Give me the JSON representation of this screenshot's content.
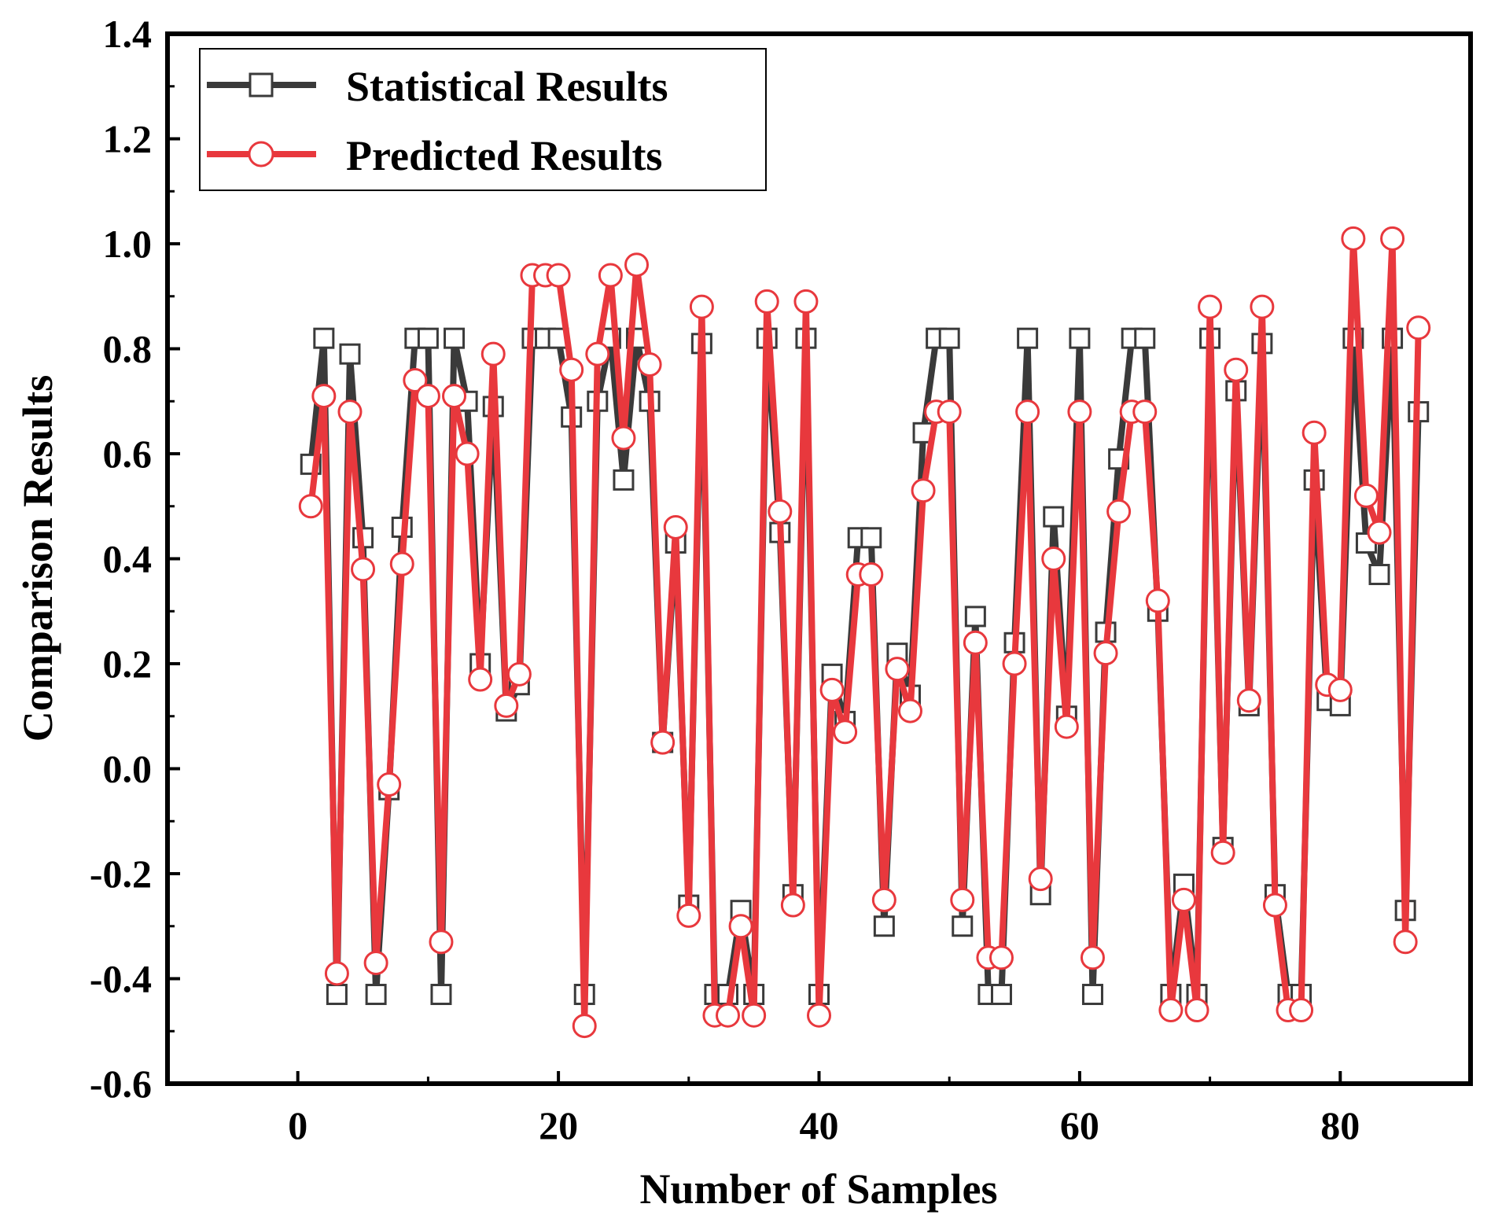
{
  "chart_data": {
    "type": "line",
    "title": "",
    "xlabel": "Number of Samples",
    "ylabel": "Comparison Results",
    "xlim": [
      -10,
      90
    ],
    "ylim": [
      -0.6,
      1.4
    ],
    "xticks": [
      0,
      20,
      40,
      60,
      80
    ],
    "yticks": [
      -0.6,
      -0.4,
      -0.2,
      0.0,
      0.2,
      0.4,
      0.6,
      0.8,
      1.0,
      1.2,
      1.4
    ],
    "ytick_labels": [
      "-0.6",
      "-0.4",
      "-0.2",
      "0.0",
      "0.2",
      "0.4",
      "0.6",
      "0.8",
      "1.0",
      "1.2",
      "1.4"
    ],
    "xtick_labels": [
      "0",
      "20",
      "40",
      "60",
      "80"
    ],
    "grid": false,
    "legend_position": "top-left",
    "x": [
      1,
      2,
      3,
      4,
      5,
      6,
      7,
      8,
      9,
      10,
      11,
      12,
      13,
      14,
      15,
      16,
      17,
      18,
      19,
      20,
      21,
      22,
      23,
      24,
      25,
      26,
      27,
      28,
      29,
      30,
      31,
      32,
      33,
      34,
      35,
      36,
      37,
      38,
      39,
      40,
      41,
      42,
      43,
      44,
      45,
      46,
      47,
      48,
      49,
      50,
      51,
      52,
      53,
      54,
      55,
      56,
      57,
      58,
      59,
      60,
      61,
      62,
      63,
      64,
      65,
      66,
      67,
      68,
      69,
      70,
      71,
      72,
      73,
      74,
      75,
      76,
      77,
      78,
      79,
      80,
      81,
      82,
      83,
      84,
      85,
      86
    ],
    "series": [
      {
        "name": "Statistical Results",
        "color": "#3a3a3a",
        "marker": "square",
        "values": [
          0.58,
          0.82,
          -0.43,
          0.79,
          0.44,
          -0.43,
          -0.04,
          0.46,
          0.82,
          0.82,
          -0.43,
          0.82,
          0.7,
          0.2,
          0.69,
          0.11,
          0.16,
          0.82,
          0.82,
          0.82,
          0.67,
          -0.43,
          0.7,
          0.82,
          0.55,
          0.82,
          0.7,
          0.05,
          0.43,
          -0.26,
          0.81,
          -0.43,
          -0.43,
          -0.27,
          -0.43,
          0.82,
          0.45,
          -0.24,
          0.82,
          -0.43,
          0.18,
          0.09,
          0.44,
          0.44,
          -0.3,
          0.22,
          0.14,
          0.64,
          0.82,
          0.82,
          -0.3,
          0.29,
          -0.43,
          -0.43,
          0.24,
          0.82,
          -0.24,
          0.48,
          0.1,
          0.82,
          -0.43,
          0.26,
          0.59,
          0.82,
          0.82,
          0.3,
          -0.43,
          -0.22,
          -0.43,
          0.82,
          -0.15,
          0.72,
          0.12,
          0.81,
          -0.24,
          -0.43,
          -0.43,
          0.55,
          0.13,
          0.12,
          0.82,
          0.43,
          0.37,
          0.82,
          -0.27,
          0.68
        ]
      },
      {
        "name": "Predicted Results",
        "color": "#e8383d",
        "marker": "circle",
        "values": [
          0.5,
          0.71,
          -0.39,
          0.68,
          0.38,
          -0.37,
          -0.03,
          0.39,
          0.74,
          0.71,
          -0.33,
          0.71,
          0.6,
          0.17,
          0.79,
          0.12,
          0.18,
          0.94,
          0.94,
          0.94,
          0.76,
          -0.49,
          0.79,
          0.94,
          0.63,
          0.96,
          0.77,
          0.05,
          0.46,
          -0.28,
          0.88,
          -0.47,
          -0.47,
          -0.3,
          -0.47,
          0.89,
          0.49,
          -0.26,
          0.89,
          -0.47,
          0.15,
          0.07,
          0.37,
          0.37,
          -0.25,
          0.19,
          0.11,
          0.53,
          0.68,
          0.68,
          -0.25,
          0.24,
          -0.36,
          -0.36,
          0.2,
          0.68,
          -0.21,
          0.4,
          0.08,
          0.68,
          -0.36,
          0.22,
          0.49,
          0.68,
          0.68,
          0.32,
          -0.46,
          -0.25,
          -0.46,
          0.88,
          -0.16,
          0.76,
          0.13,
          0.88,
          -0.26,
          -0.46,
          -0.46,
          0.64,
          0.16,
          0.15,
          1.01,
          0.52,
          0.45,
          1.01,
          -0.33,
          0.84
        ]
      }
    ]
  }
}
